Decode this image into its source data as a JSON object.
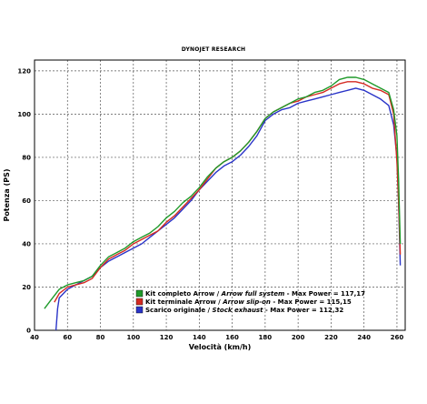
{
  "chart_data": {
    "type": "line",
    "title": "DYNOJET RESEARCH",
    "xlabel": "Velocità (km/h)",
    "ylabel": "Potenza (PS)",
    "xlim": [
      40,
      265
    ],
    "ylim": [
      0,
      125
    ],
    "x_ticks": [
      40,
      60,
      80,
      100,
      120,
      140,
      160,
      180,
      200,
      220,
      240,
      260
    ],
    "y_ticks": [
      0,
      20,
      40,
      60,
      80,
      100,
      120
    ],
    "grid": true,
    "legend_position": "bottom-center",
    "series": [
      {
        "name": "Kit completo Arrow",
        "name_en": "Arrow full system",
        "max_label": " - Max Power = 117,17",
        "color": "#1f9a2a",
        "x": [
          46,
          50,
          55,
          60,
          65,
          70,
          75,
          80,
          85,
          90,
          95,
          100,
          105,
          110,
          115,
          120,
          125,
          130,
          135,
          140,
          145,
          150,
          155,
          160,
          165,
          170,
          175,
          180,
          185,
          190,
          195,
          200,
          205,
          210,
          215,
          220,
          225,
          230,
          235,
          240,
          245,
          250,
          255,
          258,
          260,
          261,
          262
        ],
        "y": [
          10,
          14,
          19,
          21,
          22,
          23,
          25,
          30,
          34,
          36,
          38,
          41,
          43,
          45,
          48,
          52,
          55,
          59,
          62,
          66,
          71,
          75,
          78,
          80,
          83,
          87,
          92,
          98,
          101,
          103,
          105,
          107,
          108,
          110,
          111,
          113,
          116,
          117,
          117,
          116,
          114,
          112,
          110,
          102,
          90,
          70,
          40
        ]
      },
      {
        "name": "Kit terminale Arrow",
        "name_en": "Arrow slip-on",
        "max_label": " - Max Power = 115,15",
        "color": "#d42a22",
        "x": [
          52,
          55,
          60,
          65,
          70,
          75,
          80,
          85,
          90,
          95,
          100,
          105,
          110,
          115,
          120,
          125,
          130,
          135,
          140,
          145,
          150,
          155,
          160,
          165,
          170,
          175,
          180,
          185,
          190,
          195,
          200,
          205,
          210,
          215,
          220,
          225,
          230,
          235,
          240,
          245,
          250,
          255,
          258,
          260,
          261,
          262
        ],
        "y": [
          13,
          17,
          20,
          21,
          22,
          24,
          29,
          33,
          35,
          37,
          40,
          42,
          44,
          46,
          50,
          53,
          57,
          61,
          65,
          70,
          75,
          78,
          80,
          83,
          87,
          92,
          98,
          101,
          103,
          105,
          106,
          108,
          109,
          110,
          112,
          114,
          115,
          115,
          114,
          112,
          111,
          109,
          100,
          78,
          60,
          35
        ]
      },
      {
        "name": "Scarico originale",
        "name_en": "Stock exhaust",
        "max_label": " - Max Power = 112,32",
        "color": "#2a34c8",
        "x": [
          53,
          54,
          55,
          60,
          65,
          70,
          75,
          80,
          85,
          90,
          95,
          100,
          105,
          110,
          115,
          120,
          125,
          130,
          135,
          140,
          145,
          150,
          155,
          160,
          165,
          170,
          175,
          180,
          185,
          190,
          195,
          200,
          205,
          210,
          215,
          220,
          225,
          230,
          235,
          240,
          245,
          250,
          255,
          258,
          260,
          261,
          262
        ],
        "y": [
          0,
          10,
          15,
          19,
          21,
          23,
          25,
          29,
          32,
          34,
          36,
          38,
          40,
          43,
          46,
          49,
          52,
          56,
          60,
          65,
          69,
          73,
          76,
          78,
          81,
          85,
          90,
          97,
          100,
          102,
          103,
          105,
          106,
          107,
          108,
          109,
          110,
          111,
          112,
          111,
          109,
          107,
          104,
          95,
          80,
          60,
          30
        ]
      }
    ]
  }
}
